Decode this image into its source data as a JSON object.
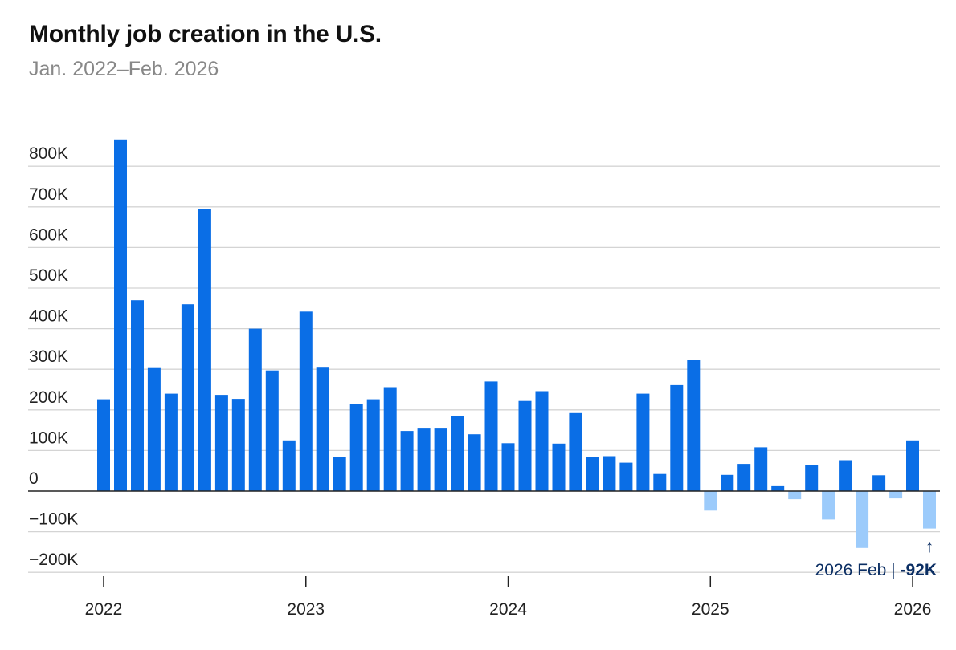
{
  "title": "Monthly job creation in the U.S.",
  "subtitle": "Jan. 2022–Feb. 2026",
  "colors": {
    "positive": "#0a6ee6",
    "negative": "#9ccbfb",
    "annotation": "#0b2e63",
    "grid": "#d4d4d4"
  },
  "chart_data": {
    "type": "bar",
    "title": "Monthly job creation in the U.S.",
    "subtitle": "Jan. 2022–Feb. 2026",
    "xlabel": "",
    "ylabel": "",
    "ylim": [
      -200000,
      870000
    ],
    "grid": true,
    "legend": "none",
    "yticks": [
      {
        "value": 800000,
        "label": "800K"
      },
      {
        "value": 700000,
        "label": "700K"
      },
      {
        "value": 600000,
        "label": "600K"
      },
      {
        "value": 500000,
        "label": "500K"
      },
      {
        "value": 400000,
        "label": "400K"
      },
      {
        "value": 300000,
        "label": "300K"
      },
      {
        "value": 200000,
        "label": "200K"
      },
      {
        "value": 100000,
        "label": "100K"
      },
      {
        "value": 0,
        "label": "0"
      },
      {
        "value": -100000,
        "label": "−100K"
      },
      {
        "value": -200000,
        "label": "−200K"
      }
    ],
    "xticks": [
      {
        "date": "2022-01",
        "label": "2022"
      },
      {
        "date": "2023-01",
        "label": "2023"
      },
      {
        "date": "2024-01",
        "label": "2024"
      },
      {
        "date": "2025-01",
        "label": "2025"
      },
      {
        "date": "2026-01",
        "label": "2026"
      }
    ],
    "categories": [
      "2022-01",
      "2022-02",
      "2022-03",
      "2022-04",
      "2022-05",
      "2022-06",
      "2022-07",
      "2022-08",
      "2022-09",
      "2022-10",
      "2022-11",
      "2022-12",
      "2023-01",
      "2023-02",
      "2023-03",
      "2023-04",
      "2023-05",
      "2023-06",
      "2023-07",
      "2023-08",
      "2023-09",
      "2023-10",
      "2023-11",
      "2023-12",
      "2024-01",
      "2024-02",
      "2024-03",
      "2024-04",
      "2024-05",
      "2024-06",
      "2024-07",
      "2024-08",
      "2024-09",
      "2024-10",
      "2024-11",
      "2024-12",
      "2025-01",
      "2025-02",
      "2025-03",
      "2025-04",
      "2025-05",
      "2025-06",
      "2025-07",
      "2025-08",
      "2025-09",
      "2025-10",
      "2025-11",
      "2025-12",
      "2026-01",
      "2026-02"
    ],
    "values": [
      226000,
      866000,
      470000,
      305000,
      240000,
      460000,
      695000,
      237000,
      227000,
      400000,
      297000,
      125000,
      442000,
      306000,
      84000,
      215000,
      226000,
      256000,
      148000,
      156000,
      156000,
      184000,
      140000,
      270000,
      118000,
      222000,
      246000,
      117000,
      192000,
      85000,
      86000,
      70000,
      240000,
      42000,
      261000,
      323000,
      -48000,
      40000,
      67000,
      108000,
      12000,
      -20000,
      64000,
      -70000,
      76000,
      -140000,
      39000,
      -18000,
      125000,
      -92000
    ],
    "annotation": {
      "date": "2026-02",
      "label": "2026 Feb | ",
      "value_label": "-92K",
      "arrow": "↑"
    }
  }
}
